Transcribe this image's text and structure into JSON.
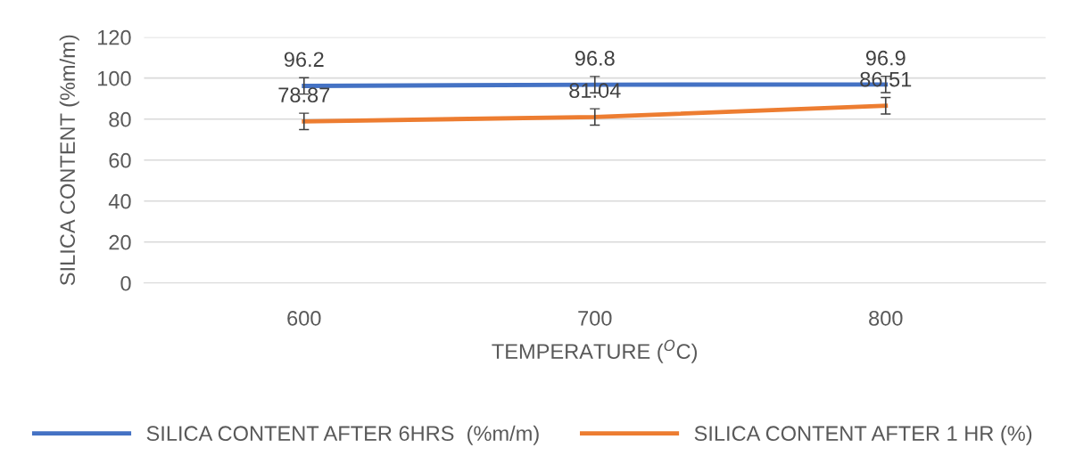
{
  "chart_data": {
    "type": "line",
    "xlabel": "TEMPERATURE ($^{O}$C)",
    "ylabel": "SILICA CONTENT (%m/m)",
    "categories": [
      "600",
      "700",
      "800"
    ],
    "series": [
      {
        "name": "SILICA CONTENT AFTER 6HRS  (%m/m)",
        "color": "#4472c4",
        "values": [
          96.2,
          96.8,
          96.9
        ],
        "errors": [
          4,
          4,
          4
        ]
      },
      {
        "name": "SILICA CONTENT AFTER 1 HR (%)",
        "color": "#ed7d31",
        "values": [
          78.87,
          81.04,
          86.51
        ],
        "errors": [
          4,
          4,
          4
        ]
      }
    ],
    "ylim": [
      0,
      120
    ],
    "yticks": [
      0,
      20,
      40,
      60,
      80,
      100,
      120
    ],
    "grid": "y",
    "legend": "bottom",
    "data_labels": true,
    "marker": "none",
    "line_style": "solid"
  }
}
